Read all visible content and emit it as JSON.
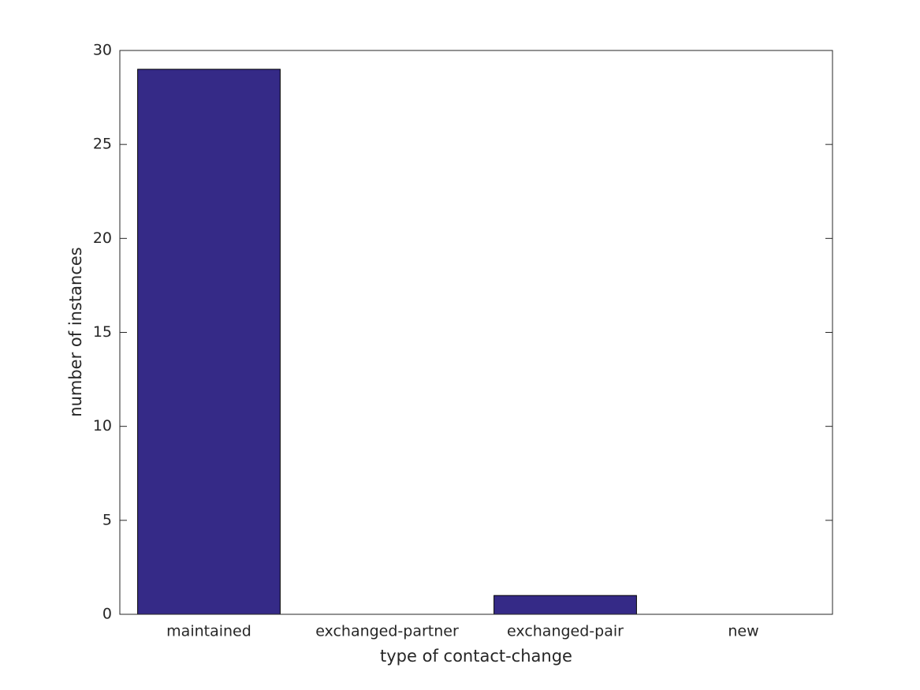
{
  "chart_data": {
    "type": "bar",
    "x_label": "type of contact-change",
    "y_label": "number of instances",
    "categories": [
      "maintained",
      "exchanged-partner",
      "exchanged-pair",
      "new"
    ],
    "values": [
      29,
      0,
      1,
      0
    ],
    "color": "#352a87",
    "ylim": [
      0,
      30
    ],
    "yticks": [
      0,
      5,
      10,
      15,
      20,
      25,
      30
    ],
    "grid": false
  }
}
